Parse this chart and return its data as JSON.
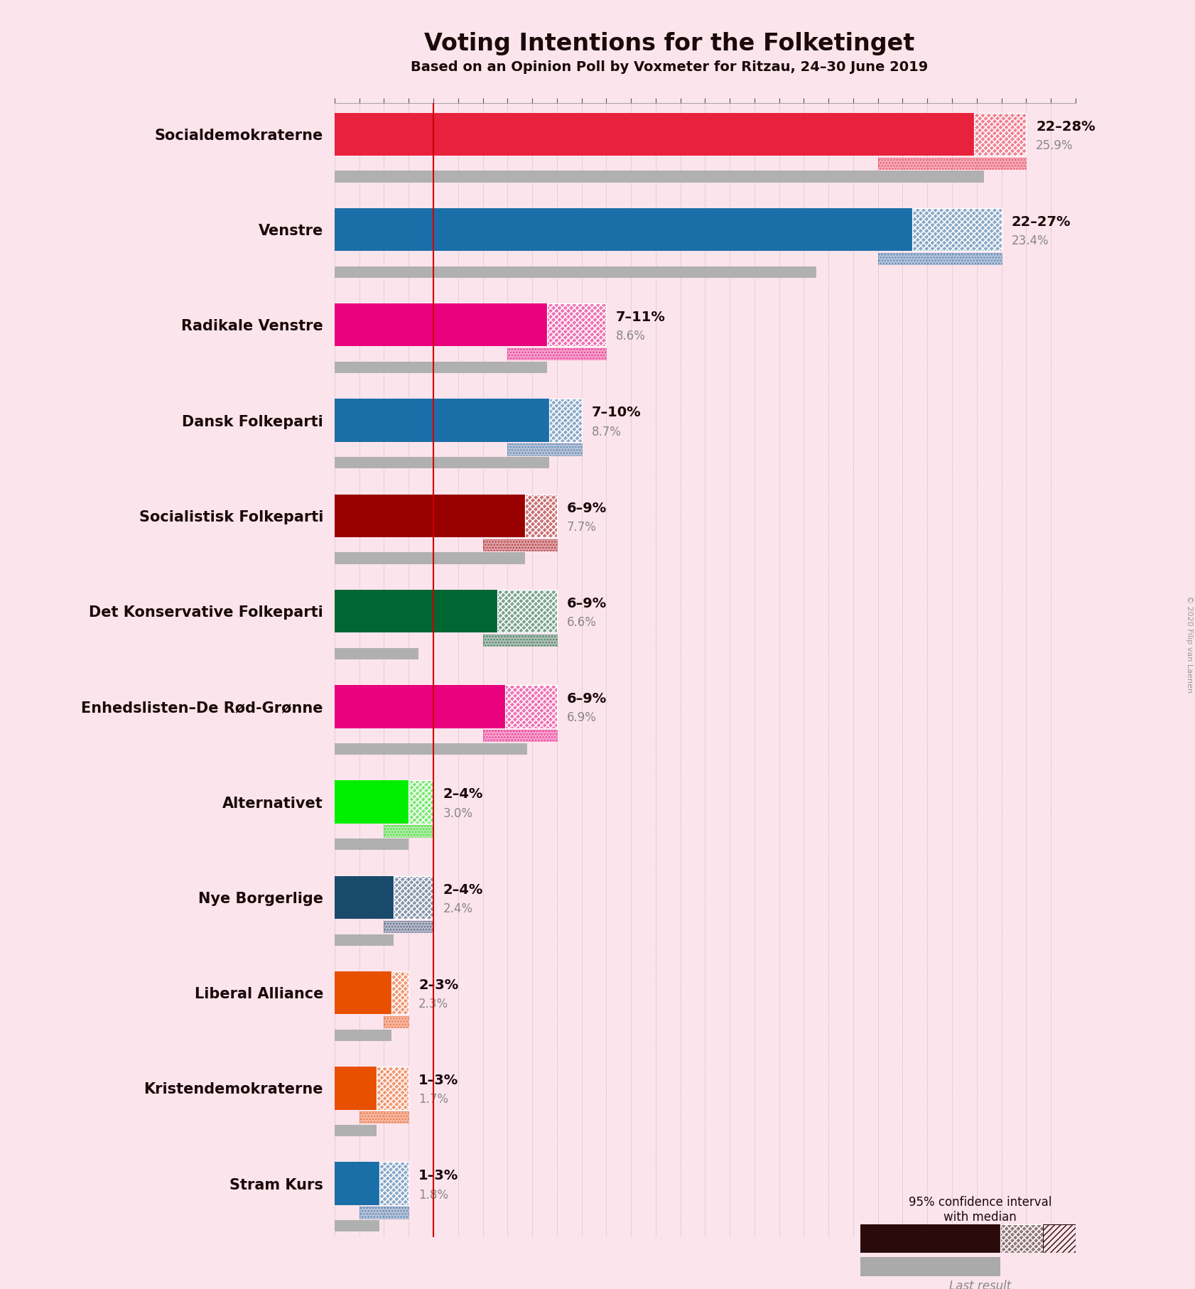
{
  "title": "Voting Intentions for the Folketinget",
  "subtitle": "Based on an Opinion Poll by Voxmeter for Ritzau, 24–30 June 2019",
  "copyright": "© 2020 Filip van Laenen",
  "background_color": "#fce4ec",
  "parties": [
    {
      "name": "Socialdemokraterne",
      "color": "#e8213c",
      "ci_low": 22,
      "median": 25.9,
      "ci_high": 28,
      "last_result": 26.3,
      "label": "22–28%",
      "median_label": "25.9%"
    },
    {
      "name": "Venstre",
      "color": "#1a6fa8",
      "ci_low": 22,
      "median": 23.4,
      "ci_high": 27,
      "last_result": 19.5,
      "label": "22–27%",
      "median_label": "23.4%"
    },
    {
      "name": "Radikale Venstre",
      "color": "#e8007d",
      "ci_low": 7,
      "median": 8.6,
      "ci_high": 11,
      "last_result": 8.6,
      "label": "7–11%",
      "median_label": "8.6%"
    },
    {
      "name": "Dansk Folkeparti",
      "color": "#1a6fa8",
      "ci_low": 7,
      "median": 8.7,
      "ci_high": 10,
      "last_result": 8.7,
      "label": "7–10%",
      "median_label": "8.7%"
    },
    {
      "name": "Socialistisk Folkeparti",
      "color": "#990000",
      "ci_low": 6,
      "median": 7.7,
      "ci_high": 9,
      "last_result": 7.7,
      "label": "6–9%",
      "median_label": "7.7%"
    },
    {
      "name": "Det Konservative Folkeparti",
      "color": "#006633",
      "ci_low": 6,
      "median": 6.6,
      "ci_high": 9,
      "last_result": 3.4,
      "label": "6–9%",
      "median_label": "6.6%"
    },
    {
      "name": "Enhedslisten–De Rød-Grønne",
      "color": "#e8007d",
      "ci_low": 6,
      "median": 6.9,
      "ci_high": 9,
      "last_result": 7.8,
      "label": "6–9%",
      "median_label": "6.9%"
    },
    {
      "name": "Alternativet",
      "color": "#00ee00",
      "ci_low": 2,
      "median": 3.0,
      "ci_high": 4,
      "last_result": 3.0,
      "label": "2–4%",
      "median_label": "3.0%"
    },
    {
      "name": "Nye Borgerlige",
      "color": "#1a4a6b",
      "ci_low": 2,
      "median": 2.4,
      "ci_high": 4,
      "last_result": 2.4,
      "label": "2–4%",
      "median_label": "2.4%"
    },
    {
      "name": "Liberal Alliance",
      "color": "#e85000",
      "ci_low": 2,
      "median": 2.3,
      "ci_high": 3,
      "last_result": 2.3,
      "label": "2–3%",
      "median_label": "2.3%"
    },
    {
      "name": "Kristendemokraterne",
      "color": "#e85000",
      "ci_low": 1,
      "median": 1.7,
      "ci_high": 3,
      "last_result": 1.7,
      "label": "1–3%",
      "median_label": "1.7%"
    },
    {
      "name": "Stram Kurs",
      "color": "#1a6fa8",
      "ci_low": 1,
      "median": 1.8,
      "ci_high": 3,
      "last_result": 1.8,
      "label": "1–3%",
      "median_label": "1.8%"
    }
  ],
  "xlim": [
    0,
    30
  ],
  "red_line_x": 4.0,
  "legend_ci_color": "#2a0a0a",
  "legend_gray_color": "#aaaaaa"
}
